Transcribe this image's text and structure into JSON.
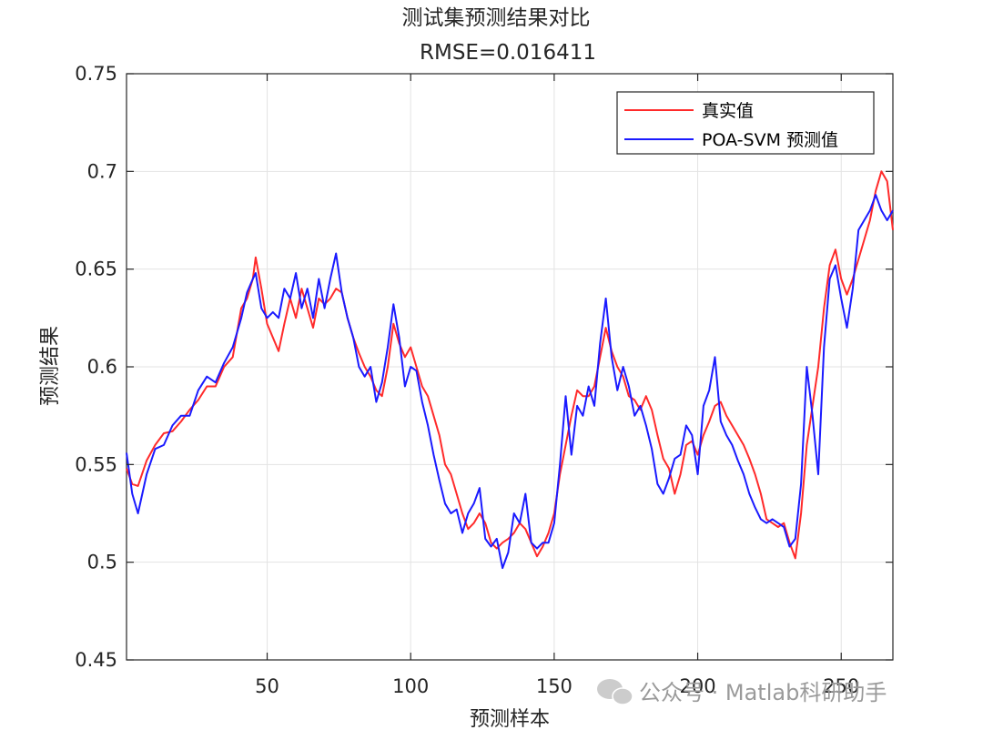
{
  "chart_data": {
    "type": "line",
    "title": "测试集预测结果对比",
    "subtitle": "RMSE=0.016411",
    "xlabel": "预测样本",
    "ylabel": "预测结果",
    "xlim": [
      1,
      268
    ],
    "ylim": [
      0.45,
      0.75
    ],
    "xticks": [
      50,
      100,
      150,
      200,
      250
    ],
    "yticks": [
      0.45,
      0.5,
      0.55,
      0.6,
      0.65,
      0.7,
      0.75
    ],
    "grid": true,
    "legend_position": "top-right",
    "series": [
      {
        "name": "真实值",
        "color": "#ff2a2a",
        "points": [
          [
            1,
            0.548
          ],
          [
            3,
            0.54
          ],
          [
            5,
            0.539
          ],
          [
            8,
            0.552
          ],
          [
            11,
            0.56
          ],
          [
            14,
            0.566
          ],
          [
            17,
            0.567
          ],
          [
            20,
            0.572
          ],
          [
            23,
            0.578
          ],
          [
            26,
            0.583
          ],
          [
            29,
            0.59
          ],
          [
            32,
            0.59
          ],
          [
            35,
            0.6
          ],
          [
            38,
            0.605
          ],
          [
            41,
            0.63
          ],
          [
            43,
            0.635
          ],
          [
            45,
            0.645
          ],
          [
            46,
            0.656
          ],
          [
            48,
            0.64
          ],
          [
            50,
            0.622
          ],
          [
            52,
            0.615
          ],
          [
            54,
            0.608
          ],
          [
            56,
            0.622
          ],
          [
            58,
            0.635
          ],
          [
            60,
            0.625
          ],
          [
            62,
            0.64
          ],
          [
            64,
            0.63
          ],
          [
            66,
            0.62
          ],
          [
            68,
            0.635
          ],
          [
            70,
            0.632
          ],
          [
            72,
            0.635
          ],
          [
            74,
            0.64
          ],
          [
            76,
            0.638
          ],
          [
            78,
            0.625
          ],
          [
            80,
            0.615
          ],
          [
            82,
            0.607
          ],
          [
            84,
            0.6
          ],
          [
            86,
            0.595
          ],
          [
            88,
            0.588
          ],
          [
            90,
            0.585
          ],
          [
            92,
            0.6
          ],
          [
            94,
            0.622
          ],
          [
            96,
            0.612
          ],
          [
            98,
            0.605
          ],
          [
            100,
            0.61
          ],
          [
            102,
            0.6
          ],
          [
            104,
            0.59
          ],
          [
            106,
            0.585
          ],
          [
            108,
            0.575
          ],
          [
            110,
            0.565
          ],
          [
            112,
            0.55
          ],
          [
            114,
            0.545
          ],
          [
            116,
            0.535
          ],
          [
            118,
            0.525
          ],
          [
            120,
            0.517
          ],
          [
            122,
            0.52
          ],
          [
            124,
            0.525
          ],
          [
            126,
            0.52
          ],
          [
            128,
            0.51
          ],
          [
            130,
            0.507
          ],
          [
            132,
            0.51
          ],
          [
            134,
            0.512
          ],
          [
            136,
            0.515
          ],
          [
            138,
            0.52
          ],
          [
            140,
            0.517
          ],
          [
            142,
            0.51
          ],
          [
            144,
            0.503
          ],
          [
            146,
            0.508
          ],
          [
            148,
            0.515
          ],
          [
            150,
            0.525
          ],
          [
            152,
            0.545
          ],
          [
            154,
            0.56
          ],
          [
            156,
            0.575
          ],
          [
            158,
            0.588
          ],
          [
            160,
            0.585
          ],
          [
            162,
            0.585
          ],
          [
            164,
            0.59
          ],
          [
            166,
            0.605
          ],
          [
            168,
            0.62
          ],
          [
            170,
            0.608
          ],
          [
            172,
            0.6
          ],
          [
            174,
            0.595
          ],
          [
            176,
            0.585
          ],
          [
            178,
            0.583
          ],
          [
            180,
            0.578
          ],
          [
            182,
            0.585
          ],
          [
            184,
            0.578
          ],
          [
            186,
            0.565
          ],
          [
            188,
            0.553
          ],
          [
            190,
            0.548
          ],
          [
            192,
            0.535
          ],
          [
            194,
            0.545
          ],
          [
            196,
            0.56
          ],
          [
            198,
            0.562
          ],
          [
            200,
            0.555
          ],
          [
            202,
            0.565
          ],
          [
            204,
            0.572
          ],
          [
            206,
            0.58
          ],
          [
            208,
            0.582
          ],
          [
            210,
            0.575
          ],
          [
            212,
            0.57
          ],
          [
            214,
            0.565
          ],
          [
            216,
            0.56
          ],
          [
            218,
            0.553
          ],
          [
            220,
            0.545
          ],
          [
            222,
            0.535
          ],
          [
            224,
            0.522
          ],
          [
            226,
            0.52
          ],
          [
            228,
            0.518
          ],
          [
            230,
            0.52
          ],
          [
            232,
            0.51
          ],
          [
            234,
            0.502
          ],
          [
            236,
            0.525
          ],
          [
            238,
            0.56
          ],
          [
            240,
            0.58
          ],
          [
            242,
            0.6
          ],
          [
            244,
            0.63
          ],
          [
            246,
            0.652
          ],
          [
            248,
            0.66
          ],
          [
            250,
            0.645
          ],
          [
            252,
            0.637
          ],
          [
            254,
            0.645
          ],
          [
            256,
            0.655
          ],
          [
            258,
            0.665
          ],
          [
            260,
            0.675
          ],
          [
            262,
            0.69
          ],
          [
            264,
            0.7
          ],
          [
            266,
            0.695
          ],
          [
            268,
            0.67
          ]
        ]
      },
      {
        "name": "POA-SVM 预测值",
        "color": "#1a1aff",
        "points": [
          [
            1,
            0.556
          ],
          [
            3,
            0.535
          ],
          [
            5,
            0.525
          ],
          [
            8,
            0.545
          ],
          [
            11,
            0.558
          ],
          [
            14,
            0.56
          ],
          [
            17,
            0.57
          ],
          [
            20,
            0.575
          ],
          [
            23,
            0.575
          ],
          [
            26,
            0.588
          ],
          [
            29,
            0.595
          ],
          [
            32,
            0.592
          ],
          [
            35,
            0.602
          ],
          [
            38,
            0.61
          ],
          [
            41,
            0.625
          ],
          [
            43,
            0.638
          ],
          [
            45,
            0.645
          ],
          [
            46,
            0.648
          ],
          [
            48,
            0.63
          ],
          [
            50,
            0.625
          ],
          [
            52,
            0.628
          ],
          [
            54,
            0.625
          ],
          [
            56,
            0.64
          ],
          [
            58,
            0.635
          ],
          [
            60,
            0.648
          ],
          [
            62,
            0.63
          ],
          [
            64,
            0.64
          ],
          [
            66,
            0.625
          ],
          [
            68,
            0.645
          ],
          [
            70,
            0.63
          ],
          [
            72,
            0.645
          ],
          [
            74,
            0.658
          ],
          [
            76,
            0.638
          ],
          [
            78,
            0.625
          ],
          [
            80,
            0.615
          ],
          [
            82,
            0.6
          ],
          [
            84,
            0.595
          ],
          [
            86,
            0.6
          ],
          [
            88,
            0.582
          ],
          [
            90,
            0.592
          ],
          [
            92,
            0.61
          ],
          [
            94,
            0.632
          ],
          [
            96,
            0.615
          ],
          [
            98,
            0.59
          ],
          [
            100,
            0.6
          ],
          [
            102,
            0.598
          ],
          [
            104,
            0.582
          ],
          [
            106,
            0.57
          ],
          [
            108,
            0.555
          ],
          [
            110,
            0.542
          ],
          [
            112,
            0.53
          ],
          [
            114,
            0.525
          ],
          [
            116,
            0.527
          ],
          [
            118,
            0.515
          ],
          [
            120,
            0.525
          ],
          [
            122,
            0.53
          ],
          [
            124,
            0.538
          ],
          [
            126,
            0.512
          ],
          [
            128,
            0.508
          ],
          [
            130,
            0.512
          ],
          [
            132,
            0.497
          ],
          [
            134,
            0.505
          ],
          [
            136,
            0.525
          ],
          [
            138,
            0.52
          ],
          [
            140,
            0.535
          ],
          [
            142,
            0.51
          ],
          [
            144,
            0.507
          ],
          [
            146,
            0.51
          ],
          [
            148,
            0.51
          ],
          [
            150,
            0.52
          ],
          [
            152,
            0.55
          ],
          [
            154,
            0.585
          ],
          [
            156,
            0.555
          ],
          [
            158,
            0.58
          ],
          [
            160,
            0.575
          ],
          [
            162,
            0.59
          ],
          [
            164,
            0.58
          ],
          [
            166,
            0.612
          ],
          [
            168,
            0.635
          ],
          [
            170,
            0.605
          ],
          [
            172,
            0.588
          ],
          [
            174,
            0.6
          ],
          [
            176,
            0.59
          ],
          [
            178,
            0.575
          ],
          [
            180,
            0.58
          ],
          [
            182,
            0.57
          ],
          [
            184,
            0.558
          ],
          [
            186,
            0.54
          ],
          [
            188,
            0.535
          ],
          [
            190,
            0.543
          ],
          [
            192,
            0.553
          ],
          [
            194,
            0.555
          ],
          [
            196,
            0.57
          ],
          [
            198,
            0.565
          ],
          [
            200,
            0.545
          ],
          [
            202,
            0.58
          ],
          [
            204,
            0.588
          ],
          [
            206,
            0.605
          ],
          [
            208,
            0.572
          ],
          [
            210,
            0.565
          ],
          [
            212,
            0.56
          ],
          [
            214,
            0.552
          ],
          [
            216,
            0.545
          ],
          [
            218,
            0.535
          ],
          [
            220,
            0.528
          ],
          [
            222,
            0.522
          ],
          [
            224,
            0.52
          ],
          [
            226,
            0.522
          ],
          [
            228,
            0.52
          ],
          [
            230,
            0.518
          ],
          [
            232,
            0.508
          ],
          [
            234,
            0.512
          ],
          [
            236,
            0.54
          ],
          [
            238,
            0.6
          ],
          [
            240,
            0.575
          ],
          [
            242,
            0.545
          ],
          [
            244,
            0.61
          ],
          [
            246,
            0.645
          ],
          [
            248,
            0.652
          ],
          [
            250,
            0.635
          ],
          [
            252,
            0.62
          ],
          [
            254,
            0.64
          ],
          [
            256,
            0.67
          ],
          [
            258,
            0.675
          ],
          [
            260,
            0.68
          ],
          [
            262,
            0.688
          ],
          [
            264,
            0.68
          ],
          [
            266,
            0.675
          ],
          [
            268,
            0.68
          ]
        ]
      }
    ]
  },
  "watermark": {
    "text": "公众号 · Matlab科研助手",
    "icon": "wechat-icon"
  }
}
